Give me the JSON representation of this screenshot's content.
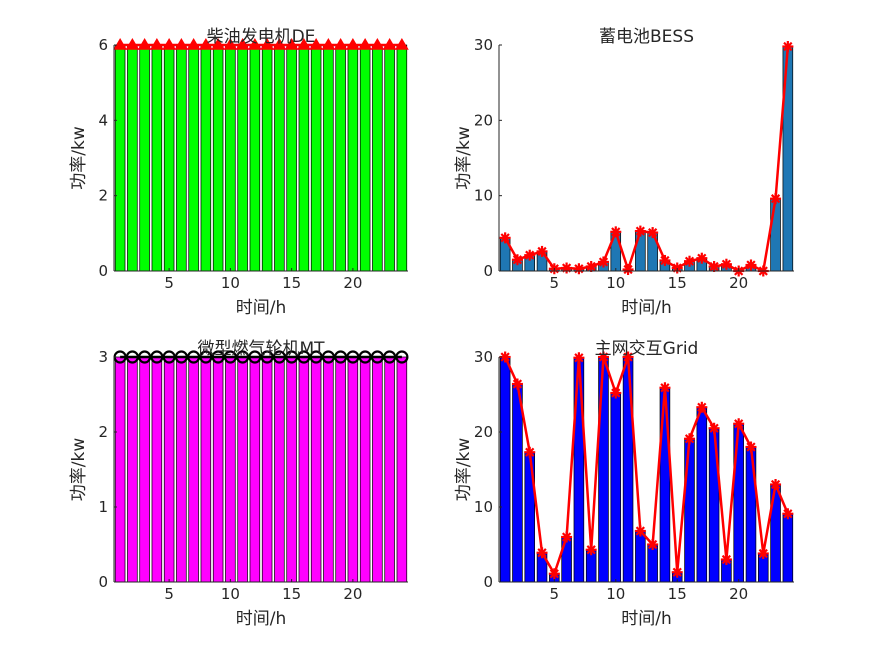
{
  "chart_data": [
    {
      "type": "bar",
      "title": "柴油发电机DE",
      "xlabel": "时间/h",
      "ylabel": "功率/kw",
      "x": [
        1,
        2,
        3,
        4,
        5,
        6,
        7,
        8,
        9,
        10,
        11,
        12,
        13,
        14,
        15,
        16,
        17,
        18,
        19,
        20,
        21,
        22,
        23,
        24
      ],
      "values": [
        6,
        6,
        6,
        6,
        6,
        6,
        6,
        6,
        6,
        6,
        6,
        6,
        6,
        6,
        6,
        6,
        6,
        6,
        6,
        6,
        6,
        6,
        6,
        6
      ],
      "xlim": [
        0.5,
        24.5
      ],
      "ylim": [
        0,
        6
      ],
      "xticks": [
        5,
        10,
        15,
        20
      ],
      "yticks": [
        0,
        2,
        4,
        6
      ],
      "bar_color": "#00ff00",
      "line_color": "#ff0000",
      "marker": "triangle",
      "grid": false
    },
    {
      "type": "bar",
      "title": "蓄电池BESS",
      "xlabel": "时间/h",
      "ylabel": "功率/kw",
      "x": [
        1,
        2,
        3,
        4,
        5,
        6,
        7,
        8,
        9,
        10,
        11,
        12,
        13,
        14,
        15,
        16,
        17,
        18,
        19,
        20,
        21,
        22,
        23,
        24
      ],
      "values": [
        4.4,
        1.5,
        2.1,
        2.6,
        0.3,
        0.4,
        0.3,
        0.6,
        1.2,
        5.2,
        0.2,
        5.3,
        5.1,
        1.4,
        0.4,
        1.3,
        1.7,
        0.6,
        0.9,
        0.0,
        0.8,
        0.0,
        9.6,
        29.8
      ],
      "xlim": [
        0.5,
        24.5
      ],
      "ylim": [
        0,
        30
      ],
      "xticks": [
        5,
        10,
        15,
        20
      ],
      "yticks": [
        0,
        10,
        20,
        30
      ],
      "bar_color": "#1f77b4",
      "line_color": "#ff0000",
      "marker": "asterisk",
      "grid": false
    },
    {
      "type": "bar",
      "title": "微型燃气轮机MT",
      "xlabel": "时间/h",
      "ylabel": "功率/kw",
      "x": [
        1,
        2,
        3,
        4,
        5,
        6,
        7,
        8,
        9,
        10,
        11,
        12,
        13,
        14,
        15,
        16,
        17,
        18,
        19,
        20,
        21,
        22,
        23,
        24
      ],
      "values": [
        3,
        3,
        3,
        3,
        3,
        3,
        3,
        3,
        3,
        3,
        3,
        3,
        3,
        3,
        3,
        3,
        3,
        3,
        3,
        3,
        3,
        3,
        3,
        3
      ],
      "xlim": [
        0.5,
        24.5
      ],
      "ylim": [
        0,
        3
      ],
      "xticks": [
        5,
        10,
        15,
        20
      ],
      "yticks": [
        0,
        1,
        2,
        3
      ],
      "bar_color": "#ff00ff",
      "line_color": "#000000",
      "marker": "circle",
      "grid": false
    },
    {
      "type": "bar",
      "title": "主网交互Grid",
      "xlabel": "时间/h",
      "ylabel": "功率/kw",
      "x": [
        1,
        2,
        3,
        4,
        5,
        6,
        7,
        8,
        9,
        10,
        11,
        12,
        13,
        14,
        15,
        16,
        17,
        18,
        19,
        20,
        21,
        22,
        23,
        24
      ],
      "values": [
        30,
        26.4,
        17.3,
        3.9,
        1.1,
        6.0,
        29.9,
        4.3,
        30.0,
        25.2,
        30.0,
        6.8,
        5.0,
        25.9,
        1.3,
        19.1,
        23.3,
        20.5,
        3.0,
        21.1,
        18.0,
        3.8,
        13.0,
        9.1
      ],
      "xlim": [
        0.5,
        24.5
      ],
      "ylim": [
        0,
        30
      ],
      "xticks": [
        5,
        10,
        15,
        20
      ],
      "yticks": [
        0,
        10,
        20,
        30
      ],
      "bar_color": "#0000ff",
      "line_color": "#ff0000",
      "marker": "asterisk",
      "grid": false
    }
  ]
}
